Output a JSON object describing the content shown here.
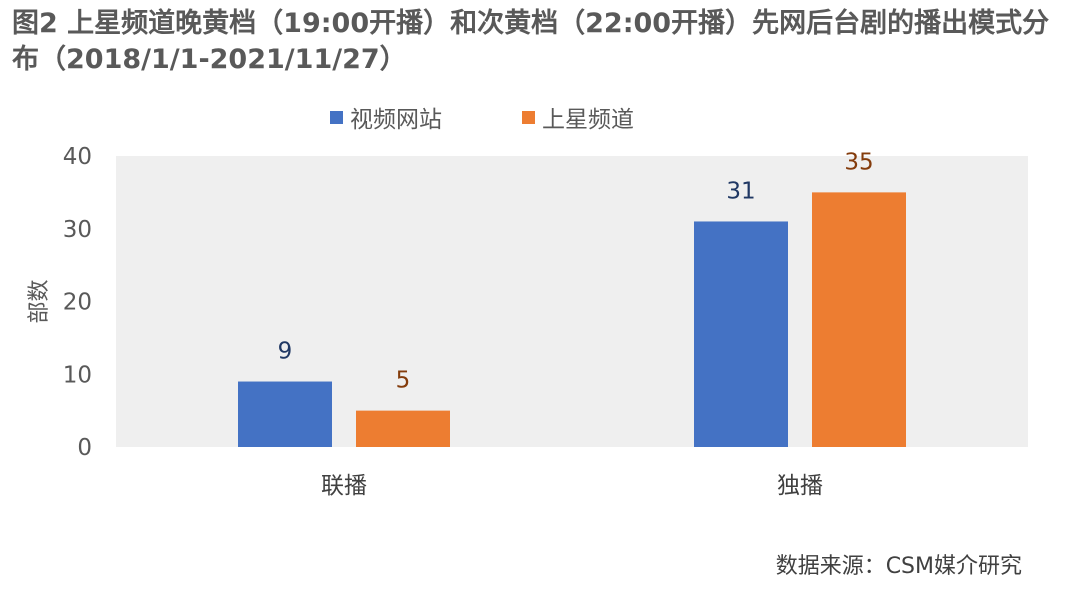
{
  "title": "图2 上星频道晚黄档（19:00开播）和次黄档（22:00开播）先网后台剧的播出模式分布（2018/1/1-2021/11/27）",
  "source": "数据来源：CSM媒介研究",
  "colors": {
    "plot_background": "#efefef",
    "axis_text": "#595959",
    "series_1": "#4472c4",
    "series_2": "#ed7d31",
    "label_1": "#203864",
    "label_2": "#843c0c"
  },
  "chart_data": {
    "type": "bar",
    "categories": [
      "联播",
      "独播"
    ],
    "series": [
      {
        "name": "视频网站",
        "values": [
          9,
          31
        ]
      },
      {
        "name": "上星频道",
        "values": [
          5,
          35
        ]
      }
    ],
    "ylabel": "部数",
    "xlabel": "",
    "ylim": [
      0,
      40
    ],
    "yticks": [
      0,
      10,
      20,
      30,
      40
    ],
    "legend_position": "top",
    "grid": false,
    "data_labels": true
  }
}
